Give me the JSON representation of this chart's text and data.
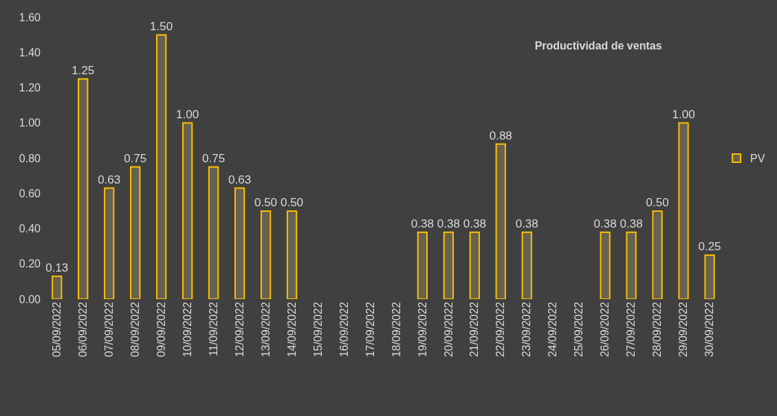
{
  "chart_data": {
    "type": "bar",
    "title": "Productividad de ventas",
    "categories": [
      "05/09/2022",
      "06/09/2022",
      "07/09/2022",
      "08/09/2022",
      "09/09/2022",
      "10/09/2022",
      "11/09/2022",
      "12/09/2022",
      "13/09/2022",
      "14/09/2022",
      "15/09/2022",
      "16/09/2022",
      "17/09/2022",
      "18/09/2022",
      "19/09/2022",
      "20/09/2022",
      "21/09/2022",
      "22/09/2022",
      "23/09/2022",
      "24/09/2022",
      "25/09/2022",
      "26/09/2022",
      "27/09/2022",
      "28/09/2022",
      "29/09/2022",
      "30/09/2022"
    ],
    "series": [
      {
        "name": "PV",
        "color": "#ffc000",
        "values": [
          0.13,
          1.25,
          0.63,
          0.75,
          1.5,
          1.0,
          0.75,
          0.63,
          0.5,
          0.5,
          null,
          null,
          null,
          null,
          0.38,
          0.38,
          0.38,
          0.88,
          0.38,
          null,
          null,
          0.38,
          0.38,
          0.5,
          1.0,
          0.25
        ],
        "value_labels": [
          "0.13",
          "1.25",
          "0.63",
          "0.75",
          "1.50",
          "1.00",
          "0.75",
          "0.63",
          "0.50",
          "0.50",
          null,
          null,
          null,
          null,
          "0.38",
          "0.38",
          "0.38",
          "0.88",
          "0.38",
          null,
          null,
          "0.38",
          "0.38",
          "0.50",
          "1.00",
          "0.25"
        ]
      }
    ],
    "ylim": [
      0,
      1.6
    ],
    "yticks": [
      {
        "value": 0,
        "label": "0.00"
      },
      {
        "value": 0.2,
        "label": "0.20"
      },
      {
        "value": 0.4,
        "label": "0.40"
      },
      {
        "value": 0.6,
        "label": "0.60"
      },
      {
        "value": 0.8,
        "label": "0.80"
      },
      {
        "value": 1.0,
        "label": "1.00"
      },
      {
        "value": 1.2,
        "label": "1.20"
      },
      {
        "value": 1.4,
        "label": "1.40"
      },
      {
        "value": 1.6,
        "label": "1.60"
      }
    ],
    "grid": false,
    "legend": "right"
  }
}
